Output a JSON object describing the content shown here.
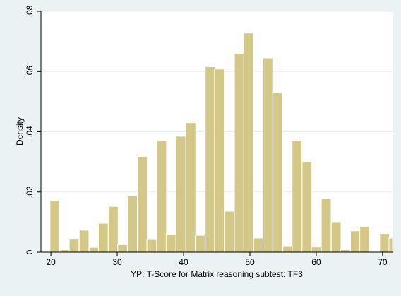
{
  "chart_data": {
    "type": "bar",
    "xlabel": "YP: T-Score for Matrix reasoning subtest: TF3",
    "ylabel": "Density",
    "xlim": [
      18.5,
      71.5
    ],
    "ylim": [
      0,
      0.08
    ],
    "xticks": [
      20,
      30,
      40,
      50,
      60,
      70
    ],
    "xtick_labels": [
      "20",
      "30",
      "40",
      "50",
      "60",
      "70"
    ],
    "yticks": [
      0,
      0.02,
      0.04,
      0.06,
      0.08
    ],
    "ytick_labels": [
      "0",
      ".02",
      ".04",
      ".06",
      ".08"
    ],
    "grid": true,
    "bin_width": 1.46,
    "bins": [
      {
        "x": 20.6,
        "density": 0.0172
      },
      {
        "x": 22.1,
        "density": 0.0008
      },
      {
        "x": 23.5,
        "density": 0.0043
      },
      {
        "x": 25.0,
        "density": 0.0073
      },
      {
        "x": 26.5,
        "density": 0.0016
      },
      {
        "x": 27.9,
        "density": 0.0096
      },
      {
        "x": 29.4,
        "density": 0.0152
      },
      {
        "x": 30.8,
        "density": 0.0025
      },
      {
        "x": 32.3,
        "density": 0.0187
      },
      {
        "x": 33.8,
        "density": 0.0318
      },
      {
        "x": 35.2,
        "density": 0.0042
      },
      {
        "x": 36.7,
        "density": 0.037
      },
      {
        "x": 38.1,
        "density": 0.006
      },
      {
        "x": 39.6,
        "density": 0.0385
      },
      {
        "x": 41.1,
        "density": 0.043
      },
      {
        "x": 42.5,
        "density": 0.0056
      },
      {
        "x": 44.0,
        "density": 0.0616
      },
      {
        "x": 45.4,
        "density": 0.0608
      },
      {
        "x": 46.9,
        "density": 0.0136
      },
      {
        "x": 48.4,
        "density": 0.066
      },
      {
        "x": 49.8,
        "density": 0.0728
      },
      {
        "x": 51.3,
        "density": 0.0047
      },
      {
        "x": 52.7,
        "density": 0.0645
      },
      {
        "x": 54.2,
        "density": 0.053
      },
      {
        "x": 55.7,
        "density": 0.0021
      },
      {
        "x": 57.1,
        "density": 0.0372
      },
      {
        "x": 58.6,
        "density": 0.03
      },
      {
        "x": 60.0,
        "density": 0.0017
      },
      {
        "x": 61.5,
        "density": 0.0178
      },
      {
        "x": 63.0,
        "density": 0.0101
      },
      {
        "x": 64.4,
        "density": 0.0008
      },
      {
        "x": 65.9,
        "density": 0.0071
      },
      {
        "x": 67.3,
        "density": 0.0086
      },
      {
        "x": 68.8,
        "density": 0.0
      },
      {
        "x": 70.3,
        "density": 0.0062
      },
      {
        "x": 71.7,
        "density": 0.0047
      }
    ],
    "colors": {
      "background": "#eaf2f3",
      "plot_area": "#ffffff",
      "bar_fill": "#d4c889",
      "bar_stroke": "#ffffff",
      "grid": "#e6eef0"
    }
  }
}
